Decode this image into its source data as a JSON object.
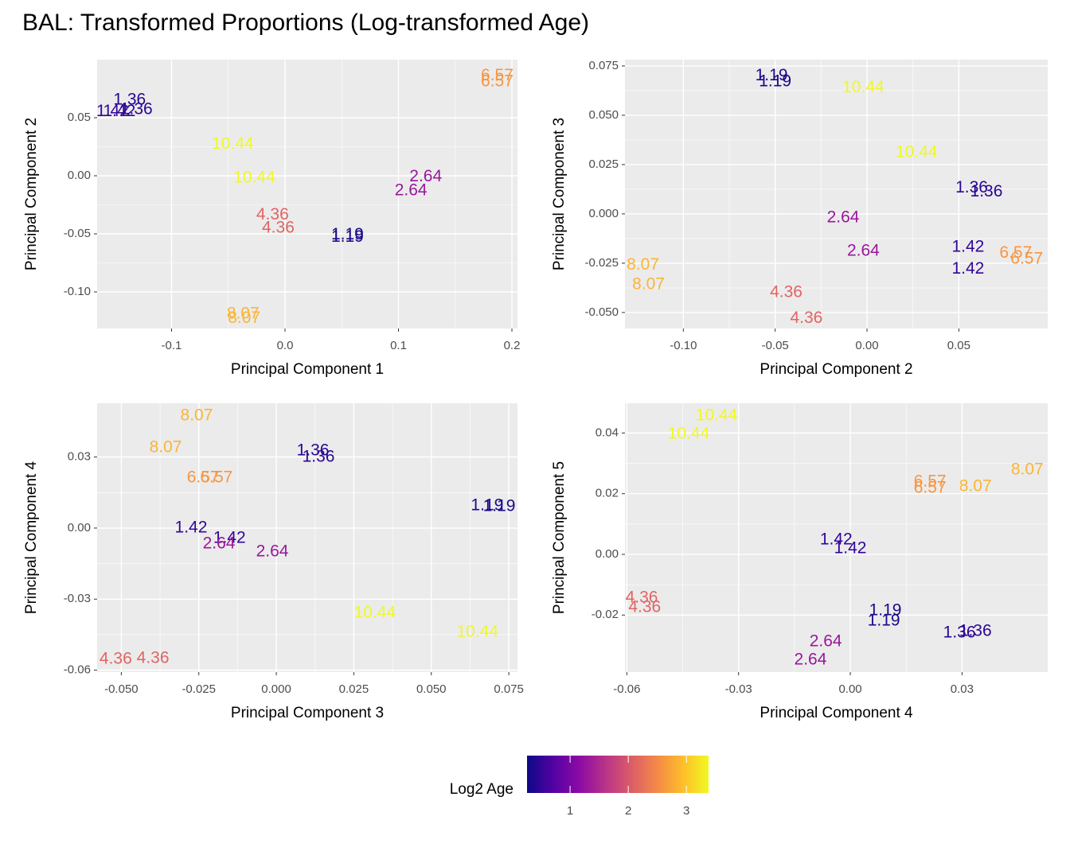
{
  "title": "BAL: Transformed Proportions (Log-transformed Age)",
  "chart_data": [
    {
      "type": "scatter",
      "xlabel": "Principal Component 1",
      "ylabel": "Principal Component 2",
      "xlim": [
        -0.1656,
        0.2049
      ],
      "ylim": [
        -0.1315,
        0.1
      ],
      "xticks": [
        -0.1,
        {
          "value": 0,
          "label": "0.0"
        },
        0.1,
        0.2
      ],
      "yticks": [
        0.05,
        {
          "value": 0,
          "label": "0.00"
        },
        -0.05,
        {
          "value": -0.1,
          "label": "-0.10"
        }
      ],
      "grid": true,
      "x": [
        0.187,
        0.187,
        -0.137,
        -0.131,
        -0.152,
        -0.146,
        -0.046,
        -0.027,
        0.124,
        0.111,
        -0.011,
        -0.006,
        0.055,
        0.055,
        -0.037,
        -0.036
      ],
      "y": [
        0.086,
        0.081,
        0.065,
        0.057,
        0.055,
        0.055,
        0.027,
        -0.002,
        -0.001,
        -0.013,
        -0.034,
        -0.045,
        -0.051,
        -0.053,
        -0.119,
        -0.123
      ],
      "labels": [
        "6.57",
        "6.57",
        "1.36",
        "1.36",
        "1.42",
        "1.42",
        "10.44",
        "10.44",
        "2.64",
        "2.64",
        "4.36",
        "4.36",
        "1.19",
        "1.19",
        "8.07",
        "8.07"
      ],
      "colors": [
        "#f89540",
        "#f89540",
        "#2a0593",
        "#2a0593",
        "#33059a",
        "#33059a",
        "#f0f921",
        "#f0f921",
        "#9a179b",
        "#9a179b",
        "#e16462",
        "#e16462",
        "#1a0a8a",
        "#1a0a8a",
        "#fbb535",
        "#fbb535"
      ]
    },
    {
      "type": "scatter",
      "xlabel": "Principal Component 2",
      "ylabel": "Principal Component 3",
      "xlim": [
        -0.1318,
        0.0984
      ],
      "ylim": [
        -0.0581,
        0.0782
      ],
      "xticks": [
        {
          "value": -0.1,
          "label": "-0.10"
        },
        -0.05,
        {
          "value": 0,
          "label": "0.00"
        },
        0.05
      ],
      "yticks": [
        0.075,
        {
          "value": 0.05,
          "label": "0.050"
        },
        0.025,
        {
          "value": 0,
          "label": "0.000"
        },
        -0.025,
        {
          "value": -0.05,
          "label": "-0.050"
        }
      ],
      "grid": true,
      "x": [
        -0.052,
        -0.05,
        -0.002,
        0.027,
        0.057,
        0.065,
        -0.013,
        -0.002,
        0.055,
        0.055,
        0.081,
        0.087,
        -0.122,
        -0.119,
        -0.044,
        -0.033
      ],
      "y": [
        0.07,
        0.067,
        0.064,
        0.031,
        0.013,
        0.011,
        -0.002,
        -0.019,
        -0.017,
        -0.028,
        -0.02,
        -0.023,
        -0.026,
        -0.036,
        -0.04,
        -0.053
      ],
      "labels": [
        "1.19",
        "1.19",
        "10.44",
        "10.44",
        "1.36",
        "1.36",
        "2.64",
        "2.64",
        "1.42",
        "1.42",
        "6.57",
        "6.57",
        "8.07",
        "8.07",
        "4.36",
        "4.36"
      ],
      "colors": [
        "#1a0a8a",
        "#1a0a8a",
        "#f0f921",
        "#f0f921",
        "#2a0593",
        "#2a0593",
        "#9a179b",
        "#9a179b",
        "#33059a",
        "#33059a",
        "#f89540",
        "#f89540",
        "#fbb535",
        "#fbb535",
        "#e16462",
        "#e16462"
      ]
    },
    {
      "type": "scatter",
      "xlabel": "Principal Component 3",
      "ylabel": "Principal Component 4",
      "xlim": [
        -0.0578,
        0.0778
      ],
      "ylim": [
        -0.0608,
        0.0527
      ],
      "xticks": [
        {
          "value": -0.05,
          "label": "-0.050"
        },
        -0.025,
        {
          "value": 0,
          "label": "0.000"
        },
        0.025,
        {
          "value": 0.05,
          "label": "0.050"
        },
        0.075
      ],
      "yticks": [
        0.03,
        {
          "value": 0,
          "label": "0.00"
        },
        -0.03,
        -0.06
      ],
      "grid": true,
      "x": [
        -0.0257,
        -0.0357,
        0.0118,
        0.0136,
        -0.0236,
        -0.0193,
        0.068,
        0.0719,
        -0.0275,
        -0.0151,
        -0.0185,
        -0.0013,
        0.0318,
        0.0649,
        -0.0518,
        -0.0398
      ],
      "y": [
        0.0473,
        0.0339,
        0.0326,
        0.0299,
        0.0212,
        0.0212,
        0.0094,
        0.0091,
        0.0,
        -0.0044,
        -0.0067,
        -0.0101,
        -0.0359,
        -0.044,
        -0.0554,
        -0.0551
      ],
      "labels": [
        "8.07",
        "8.07",
        "1.36",
        "1.36",
        "6.57",
        "6.57",
        "1.19",
        "1.19",
        "1.42",
        "1.42",
        "2.64",
        "2.64",
        "10.44",
        "10.44",
        "4.36",
        "4.36"
      ],
      "colors": [
        "#fbb535",
        "#fbb535",
        "#2a0593",
        "#2a0593",
        "#f89540",
        "#f89540",
        "#1a0a8a",
        "#1a0a8a",
        "#33059a",
        "#33059a",
        "#9a179b",
        "#9a179b",
        "#f0f921",
        "#f0f921",
        "#e16462",
        "#e16462"
      ]
    },
    {
      "type": "scatter",
      "xlabel": "Principal Component 4",
      "ylabel": "Principal Component 5",
      "xlim": [
        -0.0605,
        0.053
      ],
      "ylim": [
        -0.0388,
        0.0498
      ],
      "xticks": [
        -0.06,
        -0.03,
        {
          "value": 0,
          "label": "0.00"
        },
        0.03
      ],
      "yticks": [
        0.04,
        0.02,
        {
          "value": 0,
          "label": "0.00"
        },
        -0.02
      ],
      "grid": true,
      "x": [
        -0.0359,
        -0.0434,
        0.0214,
        0.0214,
        0.0336,
        0.0475,
        -0.0038,
        0.0,
        -0.056,
        -0.0552,
        0.0094,
        0.009,
        0.0293,
        0.0336,
        -0.0066,
        -0.0107
      ],
      "y": [
        0.0456,
        0.0396,
        0.0239,
        0.0218,
        0.0223,
        0.0278,
        0.0047,
        0.0018,
        -0.0144,
        -0.0176,
        -0.0186,
        -0.022,
        -0.026,
        -0.0254,
        -0.0288,
        -0.0349
      ],
      "labels": [
        "10.44",
        "10.44",
        "6.57",
        "6.57",
        "8.07",
        "8.07",
        "1.42",
        "1.42",
        "4.36",
        "4.36",
        "1.19",
        "1.19",
        "1.36",
        "1.36",
        "2.64",
        "2.64"
      ],
      "colors": [
        "#f0f921",
        "#f0f921",
        "#f89540",
        "#f89540",
        "#fbb535",
        "#fbb535",
        "#33059a",
        "#33059a",
        "#e16462",
        "#e16462",
        "#1a0a8a",
        "#1a0a8a",
        "#2a0593",
        "#2a0593",
        "#9a179b",
        "#9a179b"
      ]
    }
  ],
  "colorbar": {
    "title": "Log2 Age",
    "lim": [
      0.26,
      3.38
    ],
    "ticks": [
      1,
      2,
      3
    ],
    "colors": [
      "#0d0887",
      "#5302a3",
      "#8b0aa5",
      "#b83289",
      "#db5c68",
      "#f48849",
      "#febd2a",
      "#f0f921"
    ]
  }
}
